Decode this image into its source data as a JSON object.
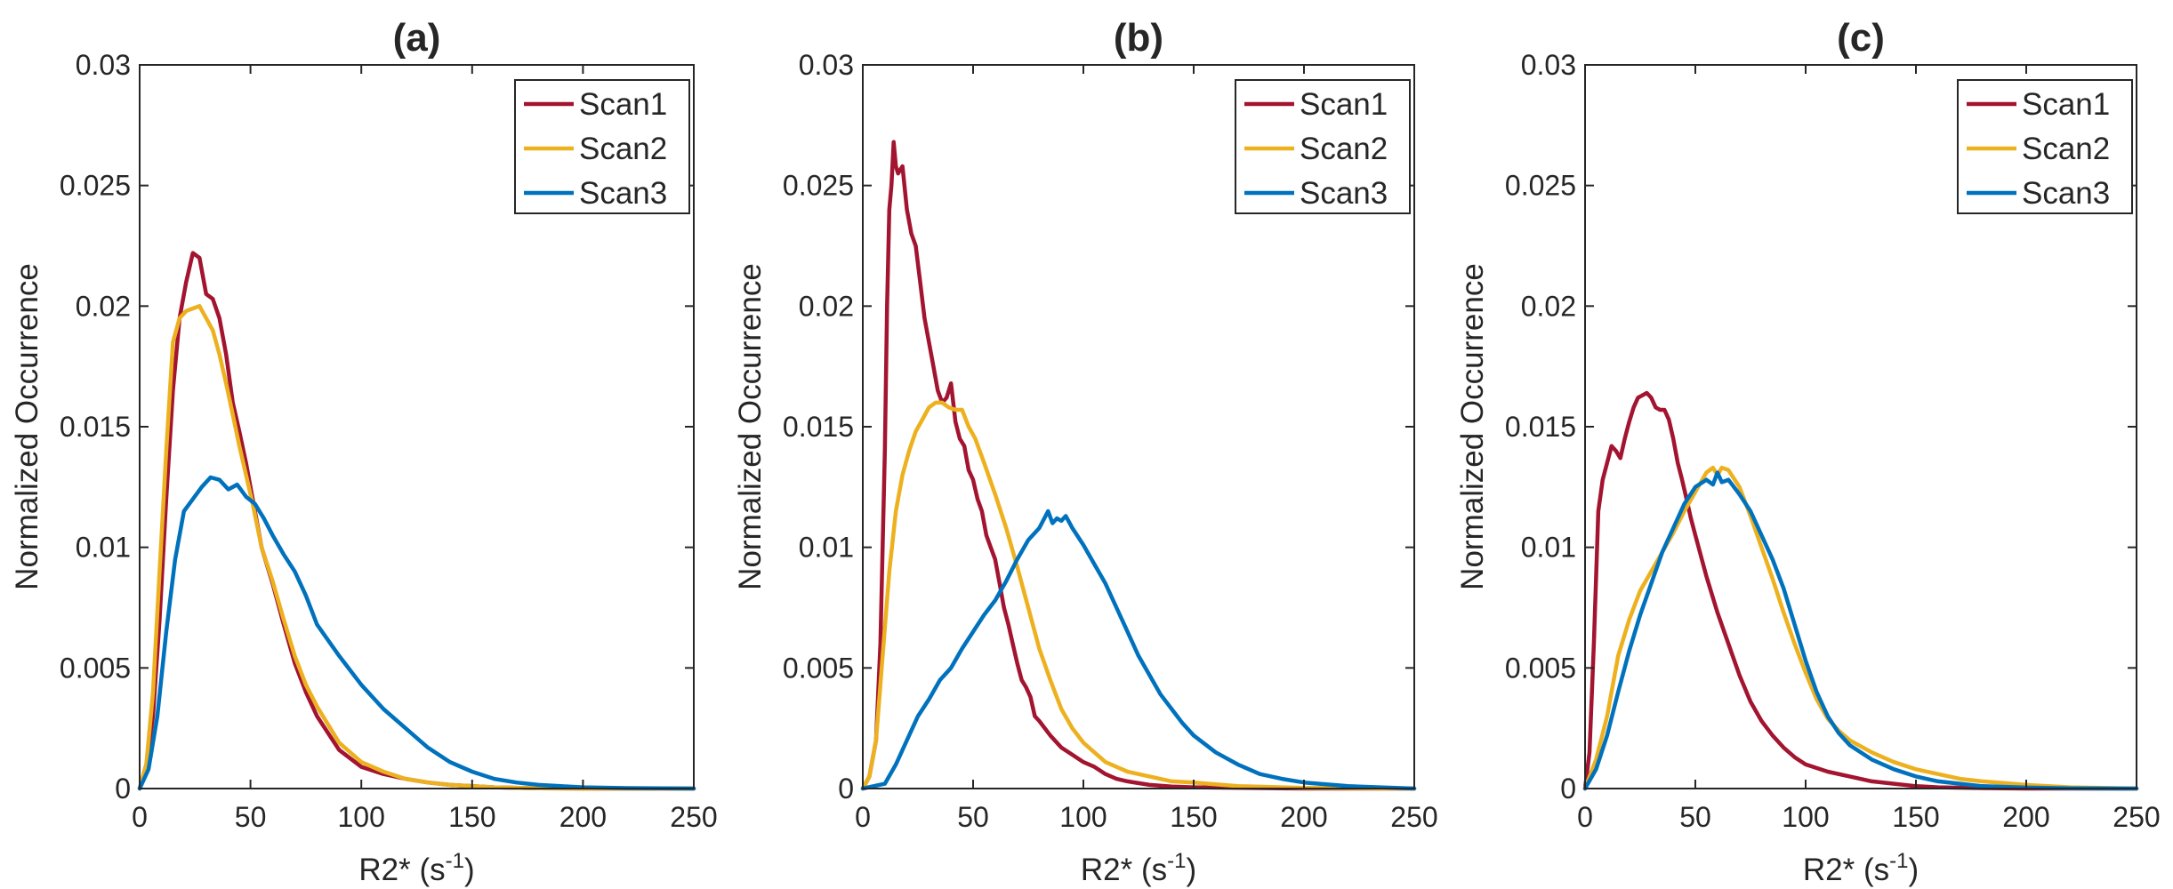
{
  "chart_data": [
    {
      "type": "line",
      "title": "(a)",
      "xlabel": "R2* (s",
      "xlabel_sup": "-1",
      "xlabel_close": ")",
      "ylabel": "Normalized Occurrence",
      "xlim": [
        0,
        250
      ],
      "ylim": [
        0,
        0.03
      ],
      "xticks": [
        0,
        50,
        100,
        150,
        200,
        250
      ],
      "xtick_labels": [
        "0",
        "50",
        "100",
        "150",
        "200",
        "250"
      ],
      "yticks": [
        0,
        0.005,
        0.01,
        0.015,
        0.02,
        0.025,
        0.03
      ],
      "ytick_labels": [
        "0",
        "0.005",
        "0.01",
        "0.015",
        "0.02",
        "0.025",
        "0.03"
      ],
      "legend_position": "top-right",
      "series": [
        {
          "name": "Scan1",
          "color": "#A2142F",
          "x": [
            0,
            3,
            6,
            9,
            12,
            15,
            18,
            21,
            24,
            27,
            30,
            33,
            36,
            39,
            42,
            45,
            48,
            51,
            55,
            60,
            65,
            70,
            75,
            80,
            90,
            100,
            110,
            120,
            130,
            140,
            150,
            160,
            180,
            200,
            250
          ],
          "y": [
            0,
            0.001,
            0.003,
            0.007,
            0.012,
            0.0165,
            0.0195,
            0.021,
            0.0222,
            0.022,
            0.0205,
            0.0203,
            0.0195,
            0.018,
            0.016,
            0.0148,
            0.0135,
            0.012,
            0.01,
            0.0085,
            0.0068,
            0.0052,
            0.004,
            0.003,
            0.0016,
            0.0009,
            0.0006,
            0.0004,
            0.00025,
            0.00015,
            0.0001,
            5e-05,
            1e-05,
            0,
            0
          ]
        },
        {
          "name": "Scan2",
          "color": "#EDB120",
          "x": [
            0,
            3,
            6,
            9,
            12,
            15,
            18,
            21,
            24,
            27,
            30,
            33,
            36,
            39,
            42,
            45,
            48,
            51,
            55,
            60,
            65,
            70,
            75,
            80,
            90,
            100,
            110,
            120,
            130,
            140,
            150,
            160,
            180,
            200,
            250
          ],
          "y": [
            0,
            0.001,
            0.004,
            0.009,
            0.014,
            0.0185,
            0.0195,
            0.0198,
            0.0199,
            0.02,
            0.0195,
            0.019,
            0.018,
            0.0168,
            0.0155,
            0.0142,
            0.013,
            0.0118,
            0.01,
            0.0086,
            0.007,
            0.0055,
            0.0043,
            0.0034,
            0.0019,
            0.0011,
            0.0007,
            0.0004,
            0.00025,
            0.00015,
            0.0001,
            5e-05,
            1e-05,
            0,
            0
          ]
        },
        {
          "name": "Scan3",
          "color": "#0072BD",
          "x": [
            0,
            4,
            8,
            12,
            16,
            20,
            24,
            28,
            32,
            36,
            40,
            44,
            48,
            52,
            56,
            60,
            65,
            70,
            75,
            80,
            90,
            100,
            110,
            120,
            130,
            140,
            150,
            160,
            170,
            180,
            190,
            200,
            220,
            250
          ],
          "y": [
            0,
            0.0008,
            0.003,
            0.0065,
            0.0095,
            0.0115,
            0.012,
            0.0125,
            0.0129,
            0.0128,
            0.0124,
            0.0126,
            0.0121,
            0.0118,
            0.0112,
            0.0105,
            0.0097,
            0.009,
            0.008,
            0.0068,
            0.0055,
            0.0043,
            0.0033,
            0.0025,
            0.0017,
            0.0011,
            0.0007,
            0.0004,
            0.00025,
            0.00015,
            0.0001,
            5e-05,
            2e-05,
            0
          ]
        }
      ]
    },
    {
      "type": "line",
      "title": "(b)",
      "xlabel": "R2* (s",
      "xlabel_sup": "-1",
      "xlabel_close": ")",
      "ylabel": "Normalized Occurrence",
      "xlim": [
        0,
        250
      ],
      "ylim": [
        0,
        0.03
      ],
      "xticks": [
        0,
        50,
        100,
        150,
        200,
        250
      ],
      "xtick_labels": [
        "0",
        "50",
        "100",
        "150",
        "200",
        "250"
      ],
      "yticks": [
        0,
        0.005,
        0.01,
        0.015,
        0.02,
        0.025,
        0.03
      ],
      "ytick_labels": [
        "0",
        "0.005",
        "0.01",
        "0.015",
        "0.02",
        "0.025",
        "0.03"
      ],
      "legend_position": "top-right",
      "series": [
        {
          "name": "Scan1",
          "color": "#A2142F",
          "x": [
            0,
            3,
            6,
            8,
            10,
            11,
            12,
            13,
            14,
            15,
            16,
            18,
            20,
            22,
            24,
            26,
            28,
            30,
            32,
            34,
            36,
            38,
            40,
            42,
            44,
            46,
            48,
            50,
            52,
            54,
            56,
            58,
            60,
            62,
            64,
            66,
            68,
            70,
            72,
            74,
            76,
            78,
            80,
            85,
            90,
            95,
            100,
            105,
            110,
            115,
            120,
            130,
            140,
            150,
            200,
            250
          ],
          "y": [
            0,
            0.0005,
            0.002,
            0.006,
            0.014,
            0.02,
            0.024,
            0.025,
            0.0268,
            0.0258,
            0.0255,
            0.0258,
            0.024,
            0.023,
            0.0225,
            0.021,
            0.0195,
            0.0185,
            0.0175,
            0.0165,
            0.016,
            0.0162,
            0.0168,
            0.0152,
            0.0145,
            0.0142,
            0.0132,
            0.0128,
            0.012,
            0.0115,
            0.0105,
            0.01,
            0.0095,
            0.0085,
            0.0075,
            0.0068,
            0.006,
            0.0052,
            0.0045,
            0.0042,
            0.0038,
            0.003,
            0.0028,
            0.0022,
            0.0017,
            0.0014,
            0.0011,
            0.0009,
            0.0006,
            0.0004,
            0.0003,
            0.00015,
            8e-05,
            5e-05,
            0,
            0
          ]
        },
        {
          "name": "Scan2",
          "color": "#EDB120",
          "x": [
            0,
            3,
            6,
            9,
            12,
            15,
            18,
            21,
            24,
            27,
            30,
            33,
            36,
            39,
            42,
            45,
            48,
            51,
            55,
            60,
            65,
            70,
            75,
            80,
            85,
            90,
            95,
            100,
            110,
            120,
            130,
            140,
            150,
            170,
            200,
            250
          ],
          "y": [
            0,
            0.0005,
            0.002,
            0.0055,
            0.009,
            0.0115,
            0.013,
            0.014,
            0.0148,
            0.0153,
            0.0158,
            0.016,
            0.016,
            0.0158,
            0.0157,
            0.0157,
            0.015,
            0.0145,
            0.0135,
            0.0122,
            0.0108,
            0.0092,
            0.0075,
            0.0058,
            0.0045,
            0.0033,
            0.0025,
            0.0019,
            0.0011,
            0.0007,
            0.0005,
            0.0003,
            0.00025,
            0.0001,
            3e-05,
            0
          ]
        },
        {
          "name": "Scan3",
          "color": "#0072BD",
          "x": [
            0,
            10,
            15,
            20,
            25,
            30,
            35,
            40,
            45,
            50,
            55,
            60,
            65,
            70,
            75,
            80,
            84,
            86,
            88,
            90,
            92,
            95,
            100,
            105,
            110,
            115,
            120,
            125,
            130,
            135,
            140,
            145,
            150,
            160,
            170,
            180,
            190,
            200,
            220,
            250
          ],
          "y": [
            0,
            0.0002,
            0.001,
            0.002,
            0.003,
            0.0037,
            0.0045,
            0.005,
            0.0058,
            0.0065,
            0.0072,
            0.0078,
            0.0086,
            0.0095,
            0.0103,
            0.0108,
            0.0115,
            0.011,
            0.0112,
            0.0111,
            0.0113,
            0.0108,
            0.0101,
            0.0093,
            0.0085,
            0.0075,
            0.0065,
            0.0055,
            0.0047,
            0.0039,
            0.0033,
            0.0027,
            0.0022,
            0.0015,
            0.001,
            0.0006,
            0.0004,
            0.00025,
            0.0001,
            0
          ]
        }
      ]
    },
    {
      "type": "line",
      "title": "(c)",
      "xlabel": "R2* (s",
      "xlabel_sup": "-1",
      "xlabel_close": ")",
      "ylabel": "Normalized Occurrence",
      "xlim": [
        0,
        250
      ],
      "ylim": [
        0,
        0.03
      ],
      "xticks": [
        0,
        50,
        100,
        150,
        200,
        250
      ],
      "xtick_labels": [
        "0",
        "50",
        "100",
        "150",
        "200",
        "250"
      ],
      "yticks": [
        0,
        0.005,
        0.01,
        0.015,
        0.02,
        0.025,
        0.03
      ],
      "ytick_labels": [
        "0",
        "0.005",
        "0.01",
        "0.015",
        "0.02",
        "0.025",
        "0.03"
      ],
      "legend_position": "top-right",
      "series": [
        {
          "name": "Scan1",
          "color": "#A2142F",
          "x": [
            0,
            2,
            4,
            6,
            8,
            10,
            12,
            14,
            16,
            18,
            20,
            22,
            24,
            26,
            28,
            30,
            32,
            34,
            36,
            38,
            40,
            42,
            44,
            46,
            48,
            50,
            55,
            60,
            65,
            70,
            75,
            80,
            85,
            90,
            95,
            100,
            110,
            120,
            130,
            140,
            150,
            160,
            180,
            200,
            250
          ],
          "y": [
            0,
            0.0015,
            0.006,
            0.0115,
            0.0128,
            0.0135,
            0.0142,
            0.014,
            0.0137,
            0.0145,
            0.0152,
            0.0158,
            0.0162,
            0.0163,
            0.0164,
            0.0162,
            0.0158,
            0.0157,
            0.0157,
            0.0153,
            0.0145,
            0.0135,
            0.0128,
            0.012,
            0.0112,
            0.0105,
            0.0088,
            0.0073,
            0.006,
            0.0047,
            0.0036,
            0.0028,
            0.0022,
            0.0017,
            0.0013,
            0.001,
            0.0007,
            0.0005,
            0.0003,
            0.0002,
            0.0001,
            5e-05,
            2e-05,
            0,
            0
          ]
        },
        {
          "name": "Scan2",
          "color": "#EDB120",
          "x": [
            0,
            5,
            10,
            15,
            20,
            25,
            30,
            35,
            40,
            45,
            50,
            55,
            58,
            60,
            62,
            65,
            70,
            75,
            80,
            85,
            90,
            95,
            100,
            105,
            110,
            115,
            120,
            130,
            140,
            150,
            160,
            170,
            180,
            200,
            220,
            250
          ],
          "y": [
            0,
            0.0012,
            0.003,
            0.0055,
            0.007,
            0.0082,
            0.009,
            0.0098,
            0.0106,
            0.0115,
            0.0123,
            0.0131,
            0.0133,
            0.013,
            0.0133,
            0.0132,
            0.0125,
            0.0113,
            0.01,
            0.0087,
            0.0073,
            0.006,
            0.0048,
            0.0037,
            0.0029,
            0.0024,
            0.002,
            0.0015,
            0.0011,
            0.0008,
            0.0006,
            0.0004,
            0.0003,
            0.00015,
            5e-05,
            0
          ]
        },
        {
          "name": "Scan3",
          "color": "#0072BD",
          "x": [
            0,
            5,
            10,
            15,
            20,
            25,
            30,
            35,
            40,
            45,
            50,
            55,
            58,
            60,
            62,
            65,
            70,
            75,
            80,
            85,
            90,
            95,
            100,
            105,
            110,
            115,
            120,
            130,
            140,
            150,
            160,
            170,
            180,
            200,
            220,
            250
          ],
          "y": [
            0,
            0.0008,
            0.0022,
            0.004,
            0.0057,
            0.0072,
            0.0085,
            0.0098,
            0.0108,
            0.0118,
            0.0125,
            0.0128,
            0.0126,
            0.0131,
            0.0127,
            0.0128,
            0.0122,
            0.0115,
            0.0105,
            0.0095,
            0.0083,
            0.0068,
            0.0053,
            0.004,
            0.003,
            0.0023,
            0.0018,
            0.0012,
            0.0008,
            0.0005,
            0.0003,
            0.0002,
            0.0001,
            4e-05,
            1e-05,
            0
          ]
        }
      ]
    }
  ]
}
